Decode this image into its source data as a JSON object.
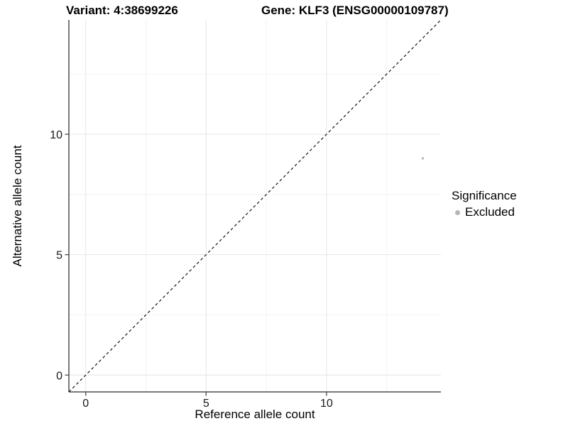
{
  "chart_data": {
    "type": "scatter",
    "title_left": "Variant: 4:38699226",
    "title_right": "Gene: KLF3 (ENSG00000109787)",
    "xlabel": "Reference allele count",
    "ylabel": "Alternative allele count",
    "x_ticks": [
      0,
      5,
      10
    ],
    "y_ticks": [
      0,
      5,
      10
    ],
    "x_minor_gridlines": [
      2.5,
      7.5,
      12.5
    ],
    "y_minor_gridlines": [
      2.5,
      7.5,
      12.5
    ],
    "xlim": [
      -0.7,
      14.75
    ],
    "ylim": [
      -0.7,
      14.75
    ],
    "grid": true,
    "legend_position": "right",
    "series": [
      {
        "name": "Excluded",
        "color": "#b5b5b5",
        "point_radius": 1.7,
        "points": [
          {
            "x": 14,
            "y": 9
          }
        ]
      }
    ],
    "reference_line": {
      "type": "identity y=x",
      "style": "dashed",
      "color": "#000000"
    },
    "legend": {
      "title": "Significance",
      "items": [
        {
          "label": "Excluded",
          "color": "#b5b5b5"
        }
      ]
    },
    "colors": {
      "grid_major": "#e6e6e6",
      "grid_minor": "#f2f2f2",
      "axis_line": "#4d4d4d",
      "tick_label": "#1a1a1a"
    }
  }
}
